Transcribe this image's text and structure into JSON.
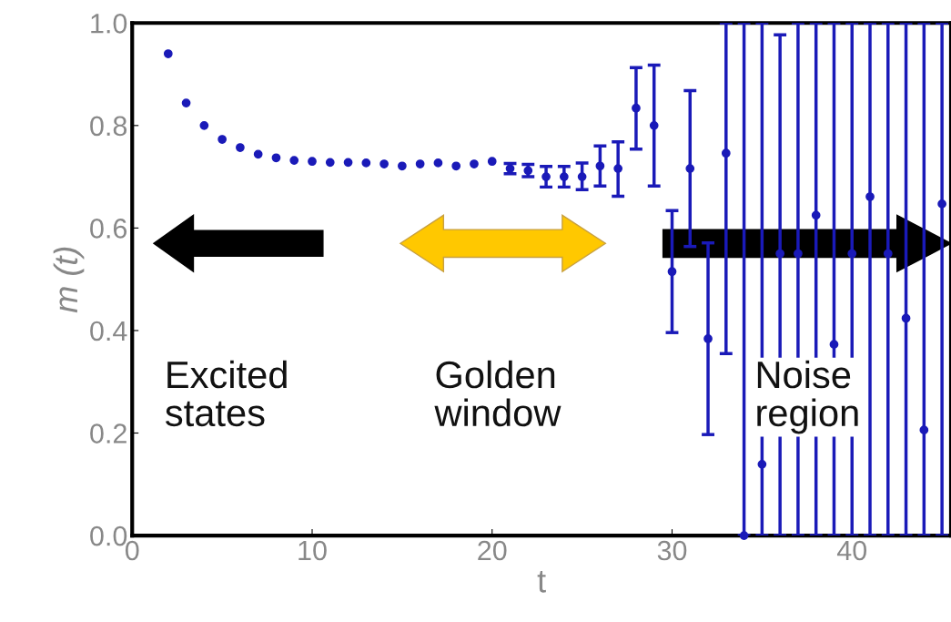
{
  "chart_data": {
    "type": "scatter",
    "xlabel": "t",
    "ylabel": "m (t)",
    "x": [
      2,
      3,
      4,
      5,
      6,
      7,
      8,
      9,
      10,
      11,
      12,
      13,
      14,
      15,
      16,
      17,
      18,
      19,
      20,
      21,
      22,
      23,
      24,
      25,
      26,
      27,
      28,
      29,
      30,
      31,
      32,
      33,
      34,
      35,
      36,
      37,
      38,
      39,
      40,
      41,
      42,
      43,
      44,
      45
    ],
    "series": [
      {
        "color": "#1a1ab8",
        "values": [
          0.94,
          0.844,
          0.8,
          0.773,
          0.757,
          0.744,
          0.737,
          0.732,
          0.73,
          0.728,
          0.728,
          0.727,
          0.725,
          0.721,
          0.725,
          0.727,
          0.721,
          0.725,
          0.73,
          0.716,
          0.712,
          0.7,
          0.7,
          0.7,
          0.721,
          0.716,
          0.834,
          0.8,
          0.515,
          0.716,
          0.384,
          0.746,
          0.0,
          0.139,
          0.55,
          0.55,
          0.625,
          0.373,
          0.55,
          0.661,
          0.55,
          0.424,
          0.206,
          0.647
        ],
        "errors": [
          null,
          null,
          null,
          null,
          null,
          null,
          null,
          null,
          null,
          null,
          null,
          null,
          null,
          null,
          null,
          null,
          null,
          null,
          null,
          [
            0.706,
            0.726
          ],
          [
            0.7,
            0.724
          ],
          [
            0.68,
            0.72
          ],
          [
            0.68,
            0.72
          ],
          [
            0.675,
            0.727
          ],
          [
            0.682,
            0.76
          ],
          [
            0.662,
            0.768
          ],
          [
            0.754,
            0.913
          ],
          [
            0.682,
            0.918
          ],
          [
            0.396,
            0.634
          ],
          [
            0.564,
            0.868
          ],
          [
            0.197,
            0.571
          ],
          [
            0.355,
            1.0
          ],
          [
            0.0,
            1.0
          ],
          [
            0.0,
            1.0
          ],
          [
            0.0,
            0.977
          ],
          [
            0.0,
            1.0
          ],
          [
            0.0,
            1.0
          ],
          [
            0.0,
            1.0
          ],
          [
            0.0,
            1.0
          ],
          [
            0.0,
            1.0
          ],
          [
            0.0,
            1.0
          ],
          [
            0.0,
            1.0
          ],
          [
            0.0,
            1.0
          ],
          [
            0.0,
            1.0
          ]
        ]
      }
    ],
    "marker": "circle",
    "xlim": [
      0,
      45.5
    ],
    "xticks": [
      0,
      10,
      20,
      30,
      40
    ],
    "ylim": [
      0.0,
      1.0
    ],
    "yticks": [
      {
        "value": 0,
        "label": "0.0"
      },
      0.2,
      0.4,
      0.6,
      0.8,
      {
        "value": 1,
        "label": "1.0"
      }
    ],
    "grid": false,
    "annotations": [
      "Excited\nstates",
      "Golden\nwindow",
      "Noise\nregion"
    ]
  }
}
